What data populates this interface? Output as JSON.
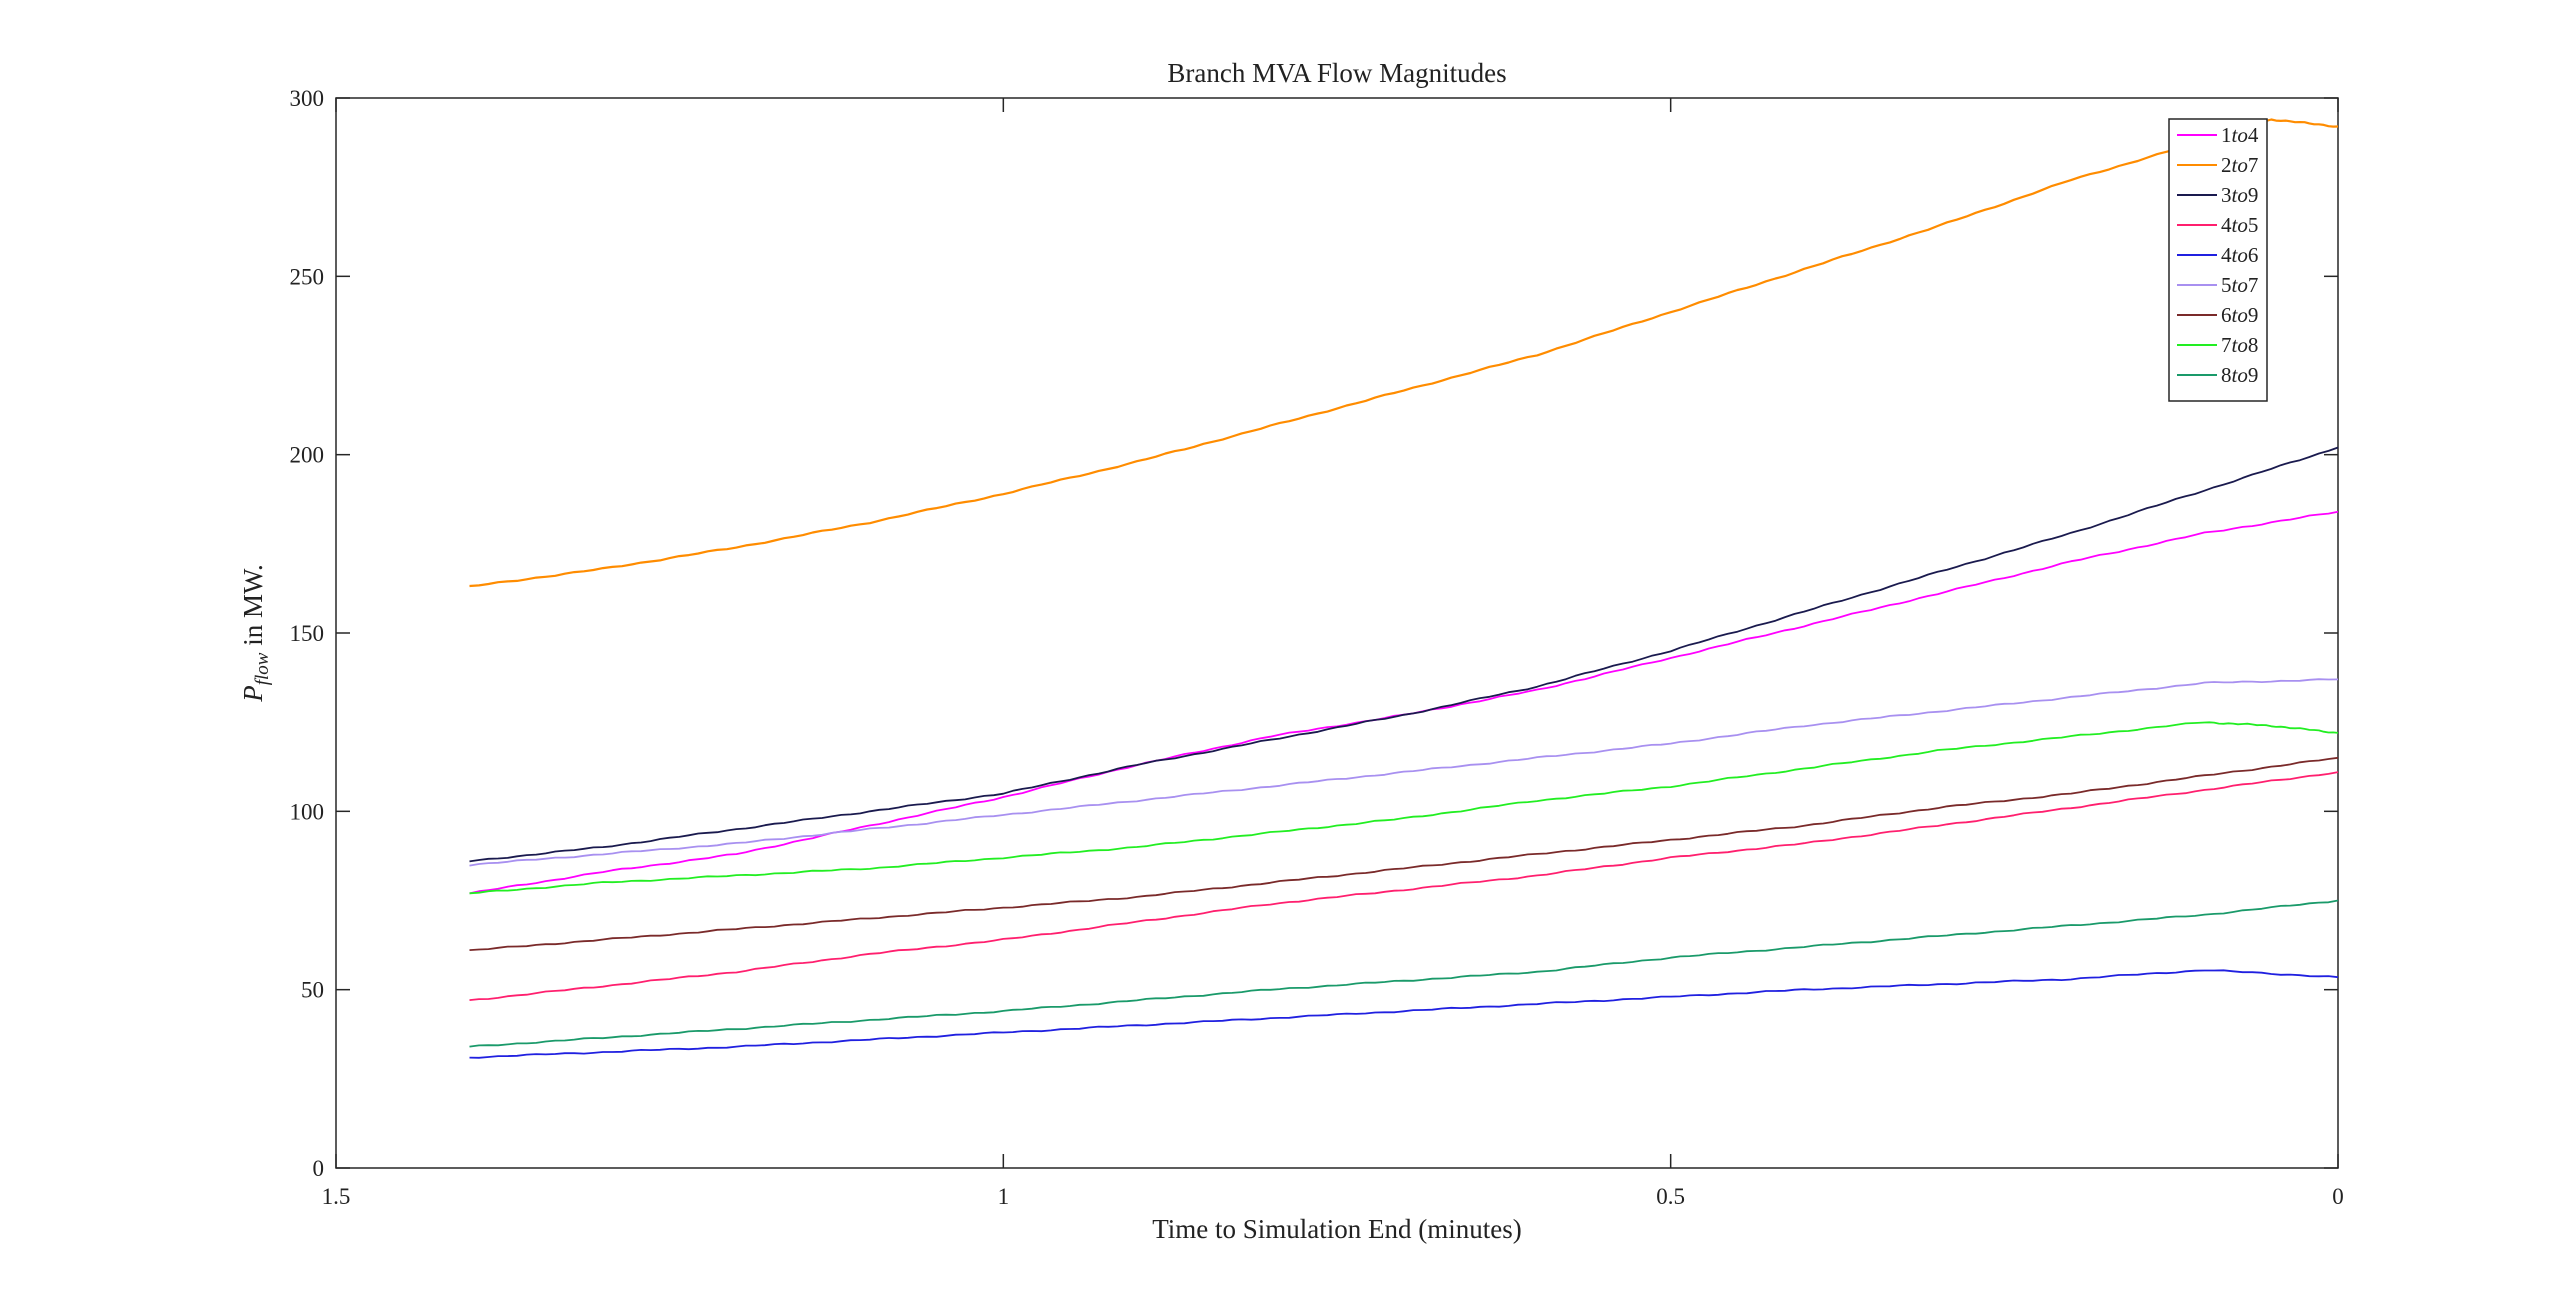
{
  "chart_data": {
    "type": "line",
    "title": "Branch MVA Flow Magnitudes",
    "xlabel": "Time to Simulation End (minutes)",
    "ylabel": "P_flow in MW.",
    "ylabel_main": "P",
    "ylabel_sub": "flow",
    "ylabel_rest": " in MW.",
    "xlim": [
      1.5,
      0
    ],
    "ylim": [
      0,
      300
    ],
    "x_reversed": true,
    "xticks": [
      1.5,
      1,
      0.5,
      0
    ],
    "xtick_labels": [
      "1.5",
      "1",
      "0.5",
      "0"
    ],
    "yticks": [
      0,
      50,
      100,
      150,
      200,
      250,
      300
    ],
    "ytick_labels": [
      "0",
      "50",
      "100",
      "150",
      "200",
      "250",
      "300"
    ],
    "grid": false,
    "legend_position": "top-right",
    "series": [
      {
        "name": "1to4",
        "label_parts": [
          "1",
          "to",
          "4"
        ],
        "color": "#ff00ff",
        "x": [
          1.4,
          1.3,
          1.2,
          1.1,
          1.0,
          0.9,
          0.8,
          0.7,
          0.6,
          0.5,
          0.4,
          0.3,
          0.2,
          0.1,
          0.0
        ],
        "values": [
          77,
          83,
          88,
          96,
          104,
          113,
          121,
          127,
          134,
          143,
          152,
          161,
          170,
          178,
          184
        ]
      },
      {
        "name": "2to7",
        "label_parts": [
          "2",
          "to",
          "7"
        ],
        "color": "#ff8c00",
        "x": [
          1.4,
          1.3,
          1.2,
          1.1,
          1.0,
          0.9,
          0.8,
          0.7,
          0.6,
          0.5,
          0.4,
          0.3,
          0.2,
          0.1,
          0.05,
          0.0
        ],
        "values": [
          163,
          168,
          174,
          181,
          189,
          198,
          208,
          218,
          228,
          240,
          252,
          264,
          277,
          288,
          294,
          292
        ]
      },
      {
        "name": "3to9",
        "label_parts": [
          "3",
          "to",
          "9"
        ],
        "color": "#1a1a4e",
        "x": [
          1.4,
          1.3,
          1.2,
          1.1,
          1.0,
          0.9,
          0.8,
          0.7,
          0.6,
          0.5,
          0.4,
          0.3,
          0.2,
          0.1,
          0.0
        ],
        "values": [
          86,
          90,
          95,
          100,
          105,
          113,
          120,
          127,
          135,
          145,
          156,
          167,
          178,
          190,
          202
        ]
      },
      {
        "name": "4to5",
        "label_parts": [
          "4",
          "to",
          "5"
        ],
        "color": "#ff1f6e",
        "x": [
          1.4,
          1.3,
          1.2,
          1.1,
          1.0,
          0.9,
          0.8,
          0.7,
          0.6,
          0.5,
          0.4,
          0.3,
          0.2,
          0.1,
          0.0
        ],
        "values": [
          47,
          51,
          55,
          60,
          64,
          69,
          74,
          78,
          82,
          87,
          91,
          96,
          101,
          106,
          111
        ]
      },
      {
        "name": "4to6",
        "label_parts": [
          "4",
          "to",
          "6"
        ],
        "color": "#2020e0",
        "x": [
          1.4,
          1.3,
          1.2,
          1.1,
          1.0,
          0.9,
          0.8,
          0.7,
          0.6,
          0.5,
          0.4,
          0.3,
          0.2,
          0.1,
          0.0
        ],
        "values": [
          31,
          32.5,
          34,
          36,
          38,
          40,
          42,
          44,
          46,
          48,
          50,
          51.5,
          53,
          55.5,
          53.5
        ]
      },
      {
        "name": "5to7",
        "label_parts": [
          "5",
          "to",
          "7"
        ],
        "color": "#a890f0",
        "x": [
          1.4,
          1.3,
          1.2,
          1.1,
          1.0,
          0.9,
          0.8,
          0.7,
          0.6,
          0.5,
          0.4,
          0.3,
          0.2,
          0.1,
          0.0
        ],
        "values": [
          85,
          88,
          91,
          95,
          99,
          103,
          107,
          111,
          115,
          119,
          124,
          128,
          132,
          136,
          137
        ]
      },
      {
        "name": "6to9",
        "label_parts": [
          "6",
          "to",
          "9"
        ],
        "color": "#7a2a2a",
        "x": [
          1.4,
          1.3,
          1.2,
          1.1,
          1.0,
          0.9,
          0.8,
          0.7,
          0.6,
          0.5,
          0.4,
          0.3,
          0.2,
          0.1,
          0.0
        ],
        "values": [
          61,
          64,
          67,
          70,
          73,
          76,
          80,
          84,
          88,
          92,
          96,
          101,
          105,
          110,
          115
        ]
      },
      {
        "name": "7to8",
        "label_parts": [
          "7",
          "to",
          "8"
        ],
        "color": "#22ee22",
        "x": [
          1.4,
          1.3,
          1.2,
          1.1,
          1.0,
          0.9,
          0.8,
          0.7,
          0.6,
          0.5,
          0.4,
          0.3,
          0.2,
          0.1,
          0.05,
          0.0
        ],
        "values": [
          77,
          80,
          82,
          84,
          87,
          90,
          94,
          98,
          103,
          107,
          112,
          117,
          121,
          125,
          124,
          122
        ]
      },
      {
        "name": "8to9",
        "label_parts": [
          "8",
          "to",
          "9"
        ],
        "color": "#1a9a6a",
        "x": [
          1.4,
          1.3,
          1.2,
          1.1,
          1.0,
          0.9,
          0.8,
          0.7,
          0.6,
          0.5,
          0.4,
          0.3,
          0.2,
          0.1,
          0.0
        ],
        "values": [
          34,
          36.5,
          39,
          41.5,
          44,
          47,
          50,
          52.5,
          55,
          59,
          62,
          65,
          68,
          71,
          75
        ]
      }
    ]
  }
}
